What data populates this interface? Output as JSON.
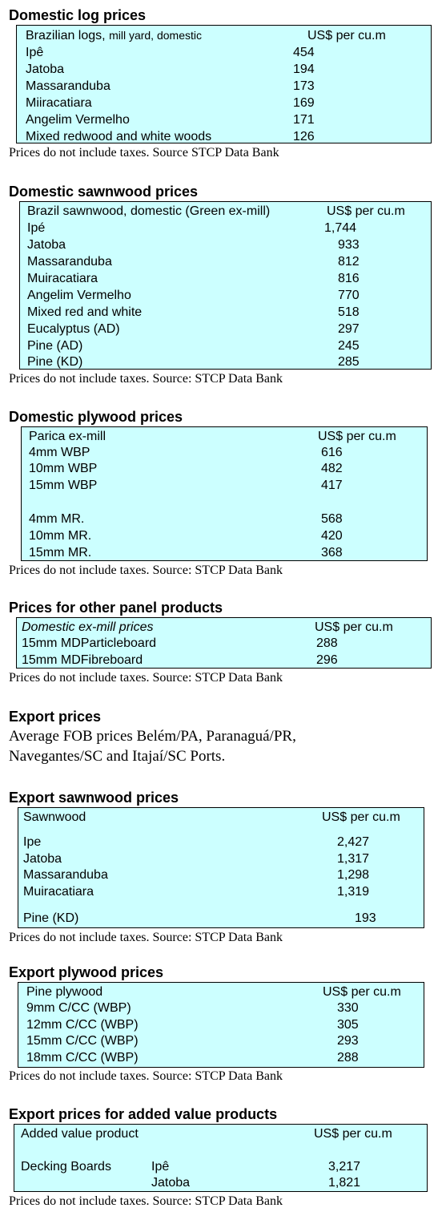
{
  "sections": {
    "domestic_logs": {
      "heading": "Domestic log prices",
      "header_label": "Brazilian logs,",
      "header_sub": "mill yard, domestic",
      "unit": "US$ per cu.m",
      "rows": [
        {
          "label": "Ipê",
          "value": "454"
        },
        {
          "label": "Jatoba",
          "value": "194"
        },
        {
          "label": "Massaranduba",
          "value": "173"
        },
        {
          "label": "Miiracatiara",
          "value": "169"
        },
        {
          "label": "Angelim Vermelho",
          "value": "171"
        },
        {
          "label": "Mixed redwood and white woods",
          "value": "126"
        }
      ],
      "note": "Prices do not include taxes. Source STCP Data Bank"
    },
    "domestic_sawnwood": {
      "heading": "Domestic sawnwood prices",
      "header_label": "Brazil sawnwood, domestic (Green ex-mill)",
      "unit": "US$ per cu.m",
      "rows": [
        {
          "label": "Ipé",
          "value": "1,744"
        },
        {
          "label": "Jatoba",
          "value": "933"
        },
        {
          "label": "Massaranduba",
          "value": "812"
        },
        {
          "label": "Muiracatiara",
          "value": "816"
        },
        {
          "label": "Angelim Vermelho",
          "value": "770"
        },
        {
          "label": "Mixed red and white",
          "value": "518"
        },
        {
          "label": "Eucalyptus (AD)",
          "value": "297"
        },
        {
          "label": "Pine (AD)",
          "value": "245"
        },
        {
          "label": "Pine (KD)",
          "value": "285"
        }
      ],
      "note": "Prices do not include taxes. Source: STCP Data Bank"
    },
    "domestic_plywood": {
      "heading": "Domestic plywood prices",
      "header_label": "Parica ex-mill",
      "unit": "US$ per cu.m",
      "rows": [
        {
          "label": "4mm WBP",
          "value": "616"
        },
        {
          "label": "10mm WBP",
          "value": "482"
        },
        {
          "label": "15mm WBP",
          "value": "417"
        },
        {
          "label": "4mm MR.",
          "value": "568"
        },
        {
          "label": "10mm MR.",
          "value": "420"
        },
        {
          "label": "15mm MR.",
          "value": "368"
        }
      ],
      "note": "Prices do not include taxes. Source: STCP Data Bank"
    },
    "other_panels": {
      "heading": "Prices for other panel products",
      "header_label": "Domestic ex-mill prices",
      "unit": "US$ per cu.m",
      "rows": [
        {
          "label": "15mm MDParticleboard",
          "value": "288"
        },
        {
          "label": "15mm MDFibreboard",
          "value": "296"
        }
      ],
      "note": "Prices do not include taxes. Source: STCP Data Bank"
    },
    "export_prices": {
      "heading": "Export prices",
      "line1": "Average FOB prices Belém/PA, Paranaguá/PR,",
      "line2": "Navegantes/SC and Itajaí/SC Ports."
    },
    "export_sawnwood": {
      "heading": "Export sawnwood prices",
      "header_label": "Sawnwood",
      "unit": "US$ per cu.m",
      "rows": [
        {
          "label": "Ipe",
          "value": "2,427"
        },
        {
          "label": "Jatoba",
          "value": "1,317"
        },
        {
          "label": "Massaranduba",
          "value": "1,298"
        },
        {
          "label": "Muiracatiara",
          "value": "1,319"
        },
        {
          "label": "Pine (KD)",
          "value": "193"
        }
      ],
      "note": "Prices do not include taxes. Source: STCP Data Bank"
    },
    "export_plywood": {
      "heading": "Export plywood prices",
      "header_label": "Pine plywood",
      "unit": "US$ per cu.m",
      "rows": [
        {
          "label": "9mm C/CC (WBP)",
          "value": "330"
        },
        {
          "label": "12mm C/CC (WBP)",
          "value": "305"
        },
        {
          "label": "15mm C/CC (WBP)",
          "value": "293"
        },
        {
          "label": "18mm C/CC (WBP)",
          "value": "288"
        }
      ],
      "note": "Prices do not include taxes. Source: STCP Data Bank"
    },
    "added_value": {
      "heading": "Export prices for added value products",
      "header_label": "Added value product",
      "unit": "US$ per cu.m",
      "rows": [
        {
          "category": "Decking Boards",
          "label": "Ipê",
          "value": "3,217"
        },
        {
          "category": "",
          "label": "Jatoba",
          "value": "1,821"
        }
      ],
      "note": "Prices do not include taxes. Source: STCP Data Bank"
    }
  },
  "colors": {
    "table_background": "#ccffff",
    "border": "#000000"
  }
}
